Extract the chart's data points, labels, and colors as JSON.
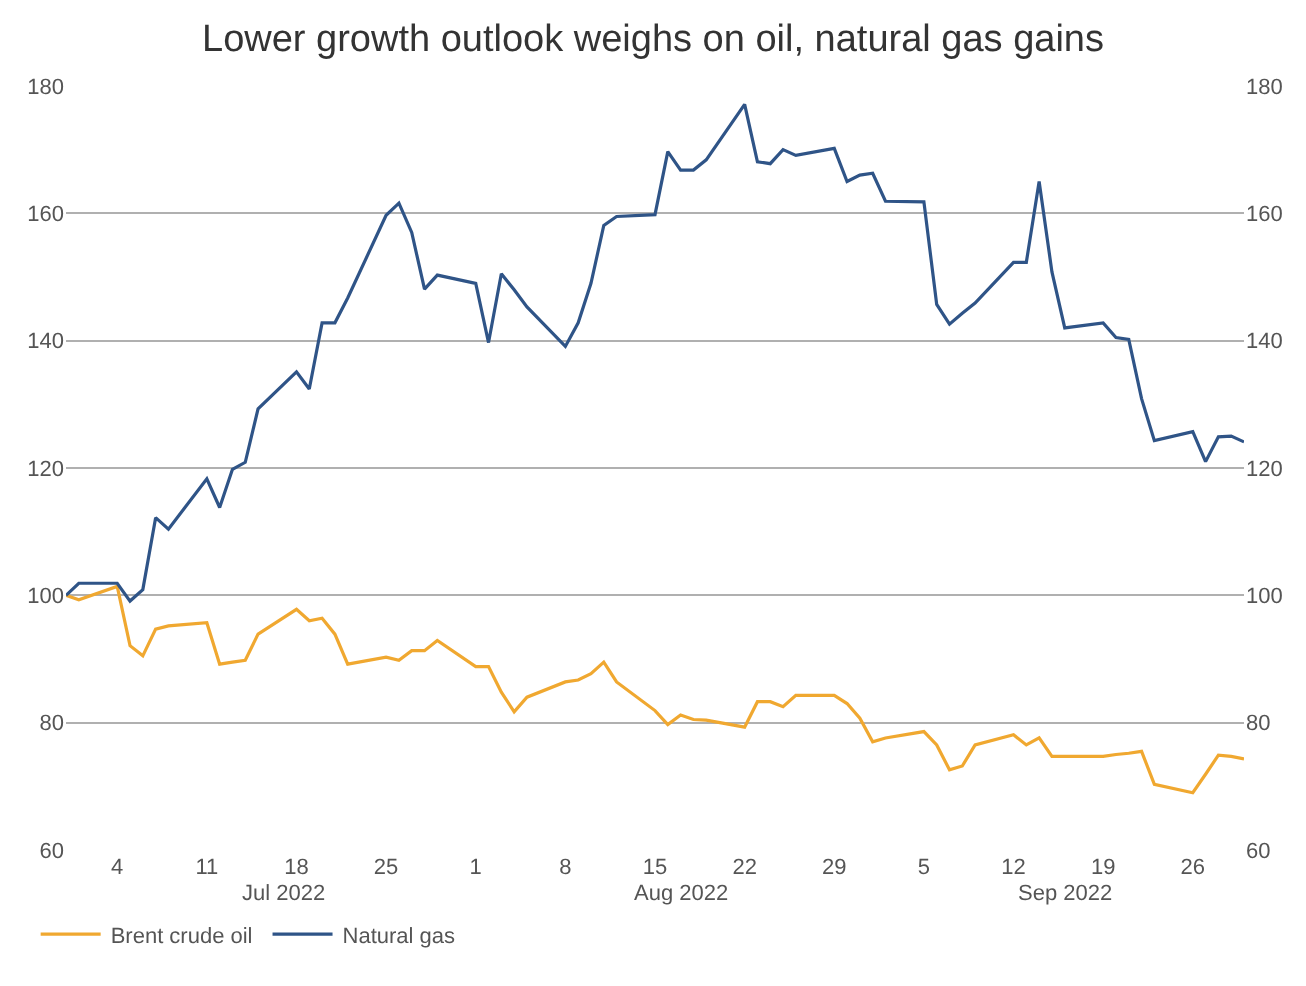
{
  "chart_data": {
    "type": "line",
    "title": "Lower growth outlook weighs on oil, natural gas gains",
    "x": [
      "2022-06-30",
      "2022-07-01",
      "2022-07-04",
      "2022-07-05",
      "2022-07-06",
      "2022-07-07",
      "2022-07-08",
      "2022-07-11",
      "2022-07-12",
      "2022-07-13",
      "2022-07-14",
      "2022-07-15",
      "2022-07-18",
      "2022-07-19",
      "2022-07-20",
      "2022-07-21",
      "2022-07-22",
      "2022-07-25",
      "2022-07-26",
      "2022-07-27",
      "2022-07-28",
      "2022-07-29",
      "2022-08-01",
      "2022-08-02",
      "2022-08-03",
      "2022-08-04",
      "2022-08-05",
      "2022-08-08",
      "2022-08-09",
      "2022-08-10",
      "2022-08-11",
      "2022-08-12",
      "2022-08-15",
      "2022-08-16",
      "2022-08-17",
      "2022-08-18",
      "2022-08-19",
      "2022-08-22",
      "2022-08-23",
      "2022-08-24",
      "2022-08-25",
      "2022-08-26",
      "2022-08-29",
      "2022-08-30",
      "2022-08-31",
      "2022-09-01",
      "2022-09-02",
      "2022-09-05",
      "2022-09-06",
      "2022-09-07",
      "2022-09-08",
      "2022-09-09",
      "2022-09-12",
      "2022-09-13",
      "2022-09-14",
      "2022-09-15",
      "2022-09-16",
      "2022-09-19",
      "2022-09-20",
      "2022-09-21",
      "2022-09-22",
      "2022-09-23",
      "2022-09-26",
      "2022-09-27",
      "2022-09-28",
      "2022-09-29",
      "2022-09-30"
    ],
    "series": [
      {
        "name": "Brent crude oil",
        "color": "#f0a830",
        "values": [
          100,
          99.3,
          101.4,
          92.1,
          90.5,
          94.7,
          95.2,
          95.7,
          89.2,
          89.5,
          89.8,
          93.9,
          97.8,
          96,
          96.4,
          93.9,
          89.2,
          90.3,
          89.8,
          91.3,
          91.3,
          92.9,
          88.8,
          88.8,
          84.8,
          81.7,
          84,
          86.4,
          86.7,
          87.7,
          89.5,
          86.4,
          81.9,
          79.7,
          81.2,
          80.5,
          80.4,
          79.3,
          83.3,
          83.3,
          82.5,
          84.3,
          84.3,
          83,
          80.7,
          77,
          77.6,
          78.6,
          76.5,
          72.6,
          73.2,
          76.5,
          78.1,
          76.5,
          77.6,
          74.7,
          74.7,
          74.7,
          75,
          75.2,
          75.5,
          70.3,
          69,
          71.9,
          74.9,
          74.7,
          74.3
        ]
      },
      {
        "name": "Natural gas",
        "color": "#2f5487",
        "values": [
          100,
          101.9,
          101.9,
          99.1,
          100.9,
          112.2,
          110.4,
          118.3,
          113.8,
          119.8,
          120.9,
          129.3,
          135.1,
          132.4,
          142.8,
          142.8,
          146.7,
          159.7,
          161.6,
          157,
          148.1,
          150.3,
          149,
          139.7,
          150.5,
          148,
          145.3,
          139.1,
          142.8,
          149,
          158.1,
          159.5,
          159.8,
          169.7,
          166.8,
          166.8,
          168.4,
          177.1,
          168.1,
          167.8,
          170,
          169.1,
          170.2,
          165,
          166,
          166.3,
          161.9,
          161.8,
          145.7,
          142.6,
          144.3,
          145.9,
          152.3,
          152.3,
          165,
          150.8,
          142,
          142.8,
          140.5,
          140.2,
          130.9,
          124.3,
          125.7,
          121,
          124.9,
          125,
          124.1
        ]
      }
    ],
    "xlim": [
      "2022-06-30",
      "2022-09-30"
    ],
    "xticks": [
      {
        "value": "2022-07-04",
        "label": "4"
      },
      {
        "value": "2022-07-11",
        "label": "11"
      },
      {
        "value": "2022-07-18",
        "label": "18"
      },
      {
        "value": "2022-07-25",
        "label": "25"
      },
      {
        "value": "2022-08-01",
        "label": "1"
      },
      {
        "value": "2022-08-08",
        "label": "8"
      },
      {
        "value": "2022-08-15",
        "label": "15"
      },
      {
        "value": "2022-08-22",
        "label": "22"
      },
      {
        "value": "2022-08-29",
        "label": "29"
      },
      {
        "value": "2022-09-05",
        "label": "5"
      },
      {
        "value": "2022-09-12",
        "label": "12"
      },
      {
        "value": "2022-09-19",
        "label": "19"
      },
      {
        "value": "2022-09-26",
        "label": "26"
      }
    ],
    "x2lim": [
      "2022-06-30",
      "2022-09-30"
    ],
    "x2ticks": [
      {
        "value": "2022-07-17",
        "label": "Jul 2022"
      },
      {
        "value": "2022-08-17",
        "label": "Aug 2022"
      },
      {
        "value": "2022-09-16",
        "label": "Sep 2022"
      }
    ],
    "ylim": [
      60,
      180
    ],
    "yticks": [
      60,
      80,
      100,
      120,
      140,
      160,
      180
    ],
    "y2lim": [
      60,
      180
    ],
    "y2ticks": [
      60,
      80,
      100,
      120,
      140,
      160,
      180
    ],
    "grid": "y",
    "legend": "bottom left",
    "marker": "none",
    "line_style": "solid"
  }
}
